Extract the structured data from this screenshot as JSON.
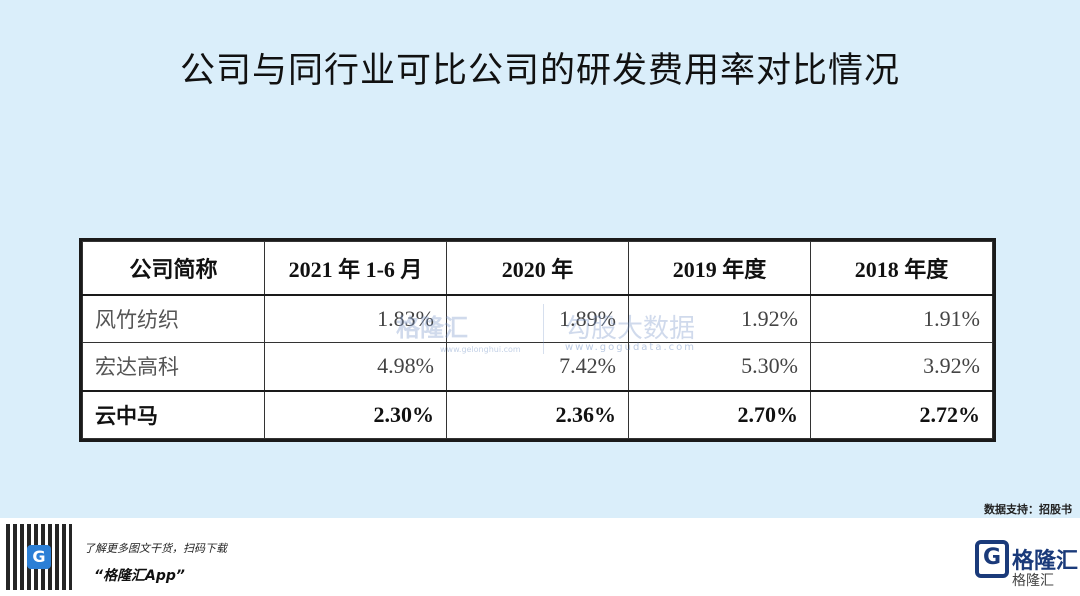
{
  "title": "公司与同行业可比公司的研发费用率对比情况",
  "table": {
    "headers": [
      "公司简称",
      "2021 年 1-6 月",
      "2020 年",
      "2019 年度",
      "2018 年度"
    ],
    "rows": [
      {
        "name": "风竹纺织",
        "values": [
          "1.83%",
          "1.89%",
          "1.92%",
          "1.91%"
        ]
      },
      {
        "name": "宏达高科",
        "values": [
          "4.98%",
          "7.42%",
          "5.30%",
          "3.92%"
        ]
      },
      {
        "name": "云中马",
        "values": [
          "2.30%",
          "2.36%",
          "2.70%",
          "2.72%"
        ]
      }
    ]
  },
  "watermark": {
    "brand1": "格隆汇",
    "brand1_url": "www.gelonghui.com",
    "brand2": "勾股大数据",
    "brand2_url": "www.gogudata.com"
  },
  "source": "数据支持：招股书",
  "footer": {
    "line1": "了解更多图文干货，扫码下载",
    "line2": "“格隆汇App”",
    "logo_text": "格隆汇",
    "logo_sub": "格隆汇",
    "qr_badge": "G"
  }
}
